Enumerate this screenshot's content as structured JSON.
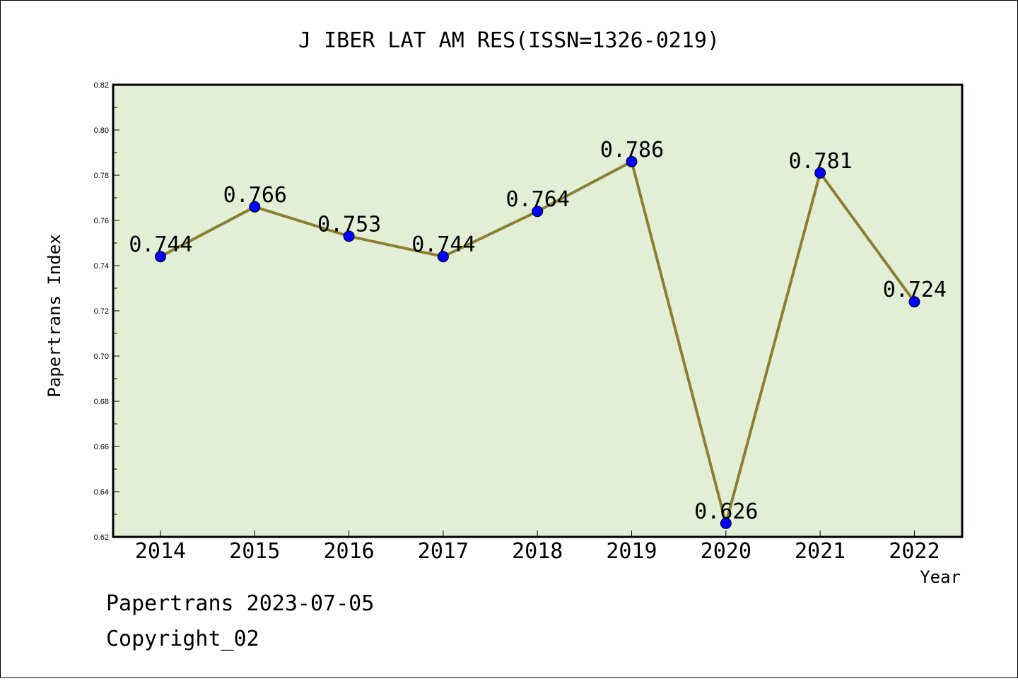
{
  "chart_data": {
    "type": "line",
    "title": "J IBER LAT AM RES(ISSN=1326-0219)",
    "xlabel": "Year",
    "ylabel": "Papertrans Index",
    "x": [
      "2014",
      "2015",
      "2016",
      "2017",
      "2018",
      "2019",
      "2020",
      "2021",
      "2022"
    ],
    "series": [
      {
        "values": [
          0.744,
          0.766,
          0.753,
          0.744,
          0.764,
          0.786,
          0.626,
          0.781,
          0.724
        ],
        "labels": [
          "0.744",
          "0.766",
          "0.753",
          "0.744",
          "0.764",
          "0.786",
          "0.626",
          "0.781",
          "0.724"
        ]
      }
    ],
    "ylim": [
      0.62,
      0.82
    ],
    "yticks": [
      "0.62",
      "0.64",
      "0.66",
      "0.68",
      "0.70",
      "0.72",
      "0.74",
      "0.76",
      "0.78",
      "0.80",
      "0.82"
    ],
    "grid": false,
    "colors": {
      "plot_background": "#e2efd6",
      "line": "#8c7f32",
      "marker": "#0000ff"
    }
  },
  "footer": {
    "line1": "Papertrans 2023-07-05",
    "line2": "Copyright_02"
  }
}
